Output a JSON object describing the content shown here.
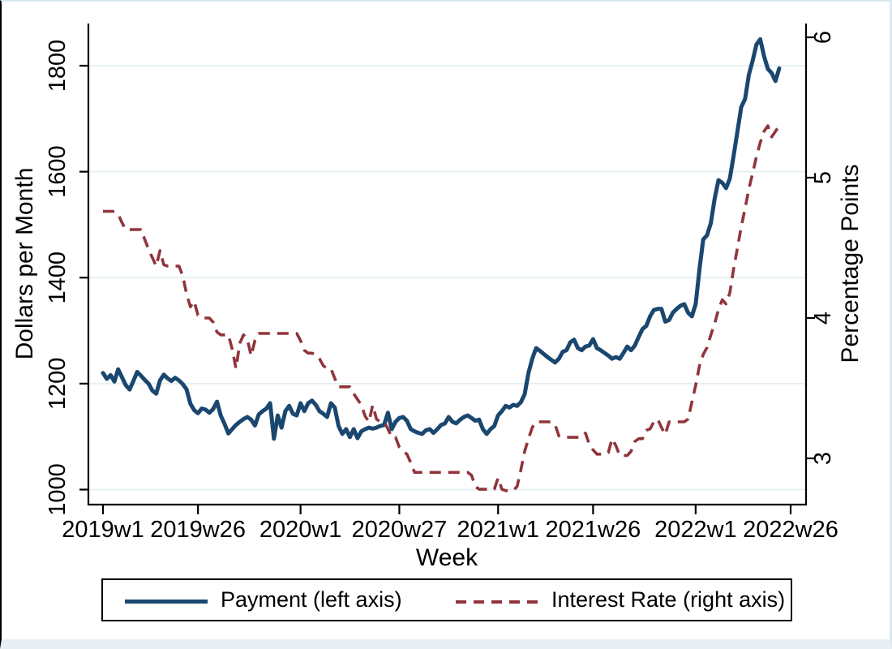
{
  "figure": {
    "x_axis_title": "Week",
    "left_axis_title": "Dollars per Month",
    "right_axis_title": "Percentage Points"
  },
  "colors": {
    "payment_line": "#1a476f",
    "interest_line": "#90353b",
    "gridline": "#e6f0f1",
    "axis": "#000000",
    "plot_background": "#ffffff"
  },
  "legend": {
    "payment_label": "Payment (left axis)",
    "interest_label": "Interest Rate (right axis)"
  },
  "chart_data": {
    "type": "line",
    "title": "",
    "xlabel": "Week",
    "x_unit": "stata_week_index_from_2019w1",
    "x_ticks": [
      {
        "week": 0,
        "label": "2019w1"
      },
      {
        "week": 25,
        "label": "2019w26"
      },
      {
        "week": 52,
        "label": "2020w1"
      },
      {
        "week": 78,
        "label": "2020w27"
      },
      {
        "week": 104,
        "label": "2021w1"
      },
      {
        "week": 129,
        "label": "2021w26"
      },
      {
        "week": 156,
        "label": "2022w1"
      },
      {
        "week": 181,
        "label": "2022w26"
      }
    ],
    "left_axis": {
      "title": "Dollars per Month",
      "ticks": [
        1000,
        1200,
        1400,
        1600,
        1800
      ],
      "grid": true
    },
    "right_axis": {
      "title": "Percentage Points",
      "ticks": [
        3,
        4,
        5,
        6
      ],
      "grid": false
    },
    "legend_position": "bottom-box",
    "series": [
      {
        "name": "Payment (left axis)",
        "axis": "left",
        "style": "solid",
        "color": "#1a476f",
        "start_week": 0,
        "values": [
          1220,
          1209,
          1216,
          1204,
          1227,
          1212,
          1197,
          1189,
          1205,
          1222,
          1215,
          1207,
          1200,
          1187,
          1181,
          1206,
          1217,
          1210,
          1205,
          1211,
          1206,
          1199,
          1189,
          1162,
          1150,
          1144,
          1153,
          1151,
          1145,
          1152,
          1166,
          1140,
          1124,
          1106,
          1114,
          1122,
          1128,
          1133,
          1137,
          1132,
          1121,
          1142,
          1148,
          1153,
          1163,
          1096,
          1140,
          1117,
          1148,
          1158,
          1143,
          1140,
          1163,
          1148,
          1163,
          1168,
          1160,
          1148,
          1143,
          1137,
          1163,
          1155,
          1120,
          1105,
          1114,
          1099,
          1114,
          1097,
          1110,
          1114,
          1117,
          1115,
          1117,
          1120,
          1122,
          1145,
          1114,
          1128,
          1135,
          1137,
          1130,
          1114,
          1110,
          1107,
          1105,
          1112,
          1114,
          1107,
          1114,
          1122,
          1125,
          1137,
          1128,
          1125,
          1132,
          1137,
          1140,
          1135,
          1130,
          1132,
          1114,
          1105,
          1114,
          1120,
          1140,
          1148,
          1158,
          1155,
          1160,
          1158,
          1165,
          1180,
          1220,
          1247,
          1267,
          1262,
          1256,
          1250,
          1245,
          1240,
          1247,
          1260,
          1263,
          1278,
          1283,
          1267,
          1263,
          1270,
          1272,
          1284,
          1267,
          1263,
          1258,
          1253,
          1247,
          1250,
          1247,
          1258,
          1270,
          1263,
          1272,
          1288,
          1303,
          1309,
          1327,
          1339,
          1341,
          1341,
          1317,
          1320,
          1334,
          1341,
          1347,
          1350,
          1334,
          1327,
          1350,
          1416,
          1472,
          1480,
          1503,
          1549,
          1584,
          1579,
          1569,
          1587,
          1630,
          1676,
          1722,
          1737,
          1783,
          1809,
          1840,
          1850,
          1818,
          1794,
          1786,
          1771,
          1795
        ]
      },
      {
        "name": "Interest Rate (right axis)",
        "axis": "right",
        "style": "dashed",
        "color": "#90353b",
        "start_week": 0,
        "values": [
          4.76,
          4.76,
          4.76,
          4.76,
          4.74,
          4.68,
          4.63,
          4.63,
          4.63,
          4.63,
          4.63,
          4.56,
          4.49,
          4.43,
          4.37,
          4.48,
          4.38,
          4.37,
          4.37,
          4.37,
          4.37,
          4.3,
          4.17,
          4.08,
          4.12,
          4.02,
          4.0,
          4.0,
          4.0,
          3.97,
          3.9,
          3.88,
          3.88,
          3.88,
          3.78,
          3.64,
          3.82,
          3.88,
          3.85,
          3.73,
          3.84,
          3.89,
          3.89,
          3.89,
          3.89,
          3.89,
          3.89,
          3.89,
          3.89,
          3.89,
          3.89,
          3.89,
          3.84,
          3.77,
          3.75,
          3.75,
          3.74,
          3.71,
          3.66,
          3.64,
          3.64,
          3.57,
          3.51,
          3.51,
          3.51,
          3.51,
          3.46,
          3.42,
          3.38,
          3.3,
          3.26,
          3.38,
          3.28,
          3.26,
          3.26,
          3.21,
          3.15,
          3.15,
          3.08,
          3.05,
          3.03,
          2.97,
          2.9,
          2.9,
          2.9,
          2.9,
          2.9,
          2.9,
          2.9,
          2.9,
          2.9,
          2.9,
          2.9,
          2.9,
          2.9,
          2.9,
          2.9,
          2.88,
          2.8,
          2.78,
          2.78,
          2.78,
          2.78,
          2.78,
          2.86,
          2.78,
          2.77,
          2.77,
          2.77,
          2.8,
          2.92,
          3.05,
          3.14,
          3.22,
          3.26,
          3.26,
          3.26,
          3.26,
          3.26,
          3.24,
          3.16,
          3.15,
          3.15,
          3.15,
          3.15,
          3.15,
          3.15,
          3.18,
          3.1,
          3.06,
          3.03,
          3.03,
          3.03,
          3.04,
          3.14,
          3.09,
          3.02,
          3.02,
          3.02,
          3.05,
          3.12,
          3.14,
          3.14,
          3.2,
          3.21,
          3.26,
          3.28,
          3.22,
          3.17,
          3.26,
          3.26,
          3.26,
          3.26,
          3.26,
          3.28,
          3.4,
          3.52,
          3.66,
          3.74,
          3.79,
          3.88,
          3.96,
          4.06,
          4.13,
          4.1,
          4.18,
          4.35,
          4.5,
          4.65,
          4.78,
          4.92,
          5.03,
          5.15,
          5.25,
          5.33,
          5.37,
          5.29,
          5.33,
          5.37
        ]
      }
    ]
  }
}
